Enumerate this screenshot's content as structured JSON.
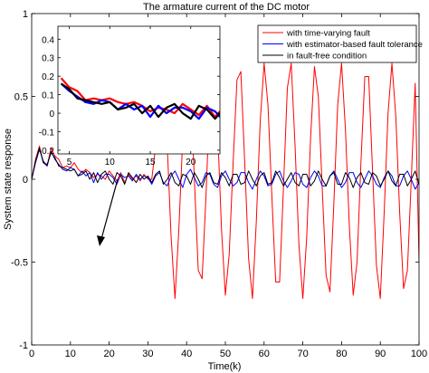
{
  "chart_data": [
    {
      "type": "line",
      "title": "The armature current of the DC motor",
      "xlabel": "Time(k)",
      "ylabel": "System state response",
      "xlim": [
        0,
        100
      ],
      "ylim": [
        -1,
        1
      ],
      "xticks": [
        0,
        10,
        20,
        30,
        40,
        50,
        60,
        70,
        80,
        90,
        100
      ],
      "yticks": [
        -1,
        -0.5,
        0,
        0.5,
        1
      ],
      "ytick_labels": [
        "-1",
        "-0.5",
        "0",
        "0.5",
        "1"
      ],
      "grid": false,
      "legend_position": "top-right",
      "series": [
        {
          "name": "with time-varying fault",
          "color": "#ff0000",
          "x": [
            0,
            1,
            2,
            3,
            4,
            5,
            6,
            7,
            8,
            9,
            10,
            11,
            12,
            13,
            14,
            15,
            16,
            17,
            18,
            19,
            20,
            21,
            22,
            23,
            24,
            25,
            26,
            27,
            28,
            29,
            30,
            31,
            32,
            33,
            34,
            35,
            36,
            37,
            38,
            39,
            40,
            41,
            42,
            43,
            44,
            45,
            46,
            47,
            48,
            49,
            50,
            51,
            52,
            53,
            54,
            55,
            56,
            57,
            58,
            59,
            60,
            61,
            62,
            63,
            64,
            65,
            66,
            67,
            68,
            69,
            70,
            71,
            72,
            73,
            74,
            75,
            76,
            77,
            78,
            79,
            80,
            81,
            82,
            83,
            84,
            85,
            86,
            87,
            88,
            89,
            90,
            91,
            92,
            93,
            94,
            95,
            96,
            97,
            98,
            99,
            100
          ],
          "y": [
            0,
            0.12,
            0.2,
            0.1,
            0.08,
            0.19,
            0.14,
            0.12,
            0.07,
            0.08,
            0.07,
            0.1,
            0.06,
            0.04,
            0.06,
            0.04,
            0.01,
            0.03,
            0.02,
            0.0,
            0.05,
            0.02,
            -0.01,
            0.04,
            -0.02,
            0.03,
            0.0,
            0.02,
            -0.01,
            0.03,
            0.0,
            0.0,
            0.2,
            0.55,
            0.7,
            0.2,
            -0.35,
            -0.72,
            -0.3,
            0.25,
            0.66,
            0.55,
            0.0,
            -0.55,
            -0.6,
            -0.1,
            0.5,
            0.68,
            0.3,
            -0.3,
            -0.7,
            -0.45,
            0.1,
            0.6,
            0.65,
            0.1,
            -0.48,
            -0.72,
            -0.25,
            0.35,
            0.7,
            0.45,
            -0.1,
            -0.62,
            -0.62,
            -0.05,
            0.55,
            0.7,
            0.2,
            -0.4,
            -0.72,
            -0.35,
            0.25,
            0.68,
            0.5,
            -0.05,
            -0.58,
            -0.68,
            -0.15,
            0.45,
            0.7,
            0.3,
            -0.28,
            -0.7,
            -0.5,
            0.1,
            0.62,
            0.62,
            0.05,
            -0.52,
            -0.72,
            -0.2,
            0.4,
            0.7,
            0.38,
            -0.2,
            -0.66,
            -0.55,
            0.0,
            0.58,
            -0.5
          ]
        },
        {
          "name": "with estimator-based fault tolerance",
          "color": "#0000ff",
          "x": [
            0,
            1,
            2,
            3,
            4,
            5,
            6,
            7,
            8,
            9,
            10,
            11,
            12,
            13,
            14,
            15,
            16,
            17,
            18,
            19,
            20,
            21,
            22,
            23,
            24,
            25,
            26,
            27,
            28,
            29,
            30,
            31,
            32,
            33,
            34,
            35,
            36,
            37,
            38,
            39,
            40,
            41,
            42,
            43,
            44,
            45,
            46,
            47,
            48,
            49,
            50,
            51,
            52,
            53,
            54,
            55,
            56,
            57,
            58,
            59,
            60,
            61,
            62,
            63,
            64,
            65,
            66,
            67,
            68,
            69,
            70,
            71,
            72,
            73,
            74,
            75,
            76,
            77,
            78,
            79,
            80,
            81,
            82,
            83,
            84,
            85,
            86,
            87,
            88,
            89,
            90,
            91,
            92,
            93,
            94,
            95,
            96,
            97,
            98,
            99,
            100
          ],
          "y": [
            0,
            0.1,
            0.18,
            0.11,
            0.08,
            0.17,
            0.12,
            0.09,
            0.06,
            0.05,
            0.07,
            0.06,
            0.02,
            0.05,
            0.02,
            0.04,
            -0.02,
            0.04,
            0.0,
            0.03,
            0.03,
            0.01,
            -0.03,
            0.03,
            0.01,
            0.02,
            -0.01,
            0.03,
            0.0,
            0.02,
            0.01,
            -0.03,
            0.02,
            0.04,
            -0.02,
            -0.04,
            0.02,
            0.05,
            0.0,
            -0.05,
            0.03,
            0.06,
            0.01,
            -0.04,
            -0.02,
            0.04,
            0.03,
            -0.03,
            -0.05,
            0.02,
            0.05,
            0.0,
            -0.04,
            -0.02,
            0.04,
            0.04,
            -0.02,
            -0.06,
            0.0,
            0.05,
            0.02,
            -0.04,
            -0.03,
            0.03,
            0.05,
            -0.01,
            -0.05,
            -0.01,
            0.04,
            0.03,
            -0.03,
            -0.05,
            0.01,
            0.05,
            0.02,
            -0.04,
            -0.04,
            0.02,
            0.05,
            0.0,
            -0.05,
            -0.02,
            0.04,
            0.04,
            -0.02,
            -0.05,
            0.0,
            0.05,
            0.02,
            -0.03,
            -0.05,
            0.01,
            0.05,
            0.02,
            -0.04,
            -0.04,
            0.02,
            0.05,
            0.0,
            -0.06,
            -0.02
          ]
        },
        {
          "name": "in fault-free condition",
          "color": "#000000",
          "x": [
            0,
            1,
            2,
            3,
            4,
            5,
            6,
            7,
            8,
            9,
            10,
            11,
            12,
            13,
            14,
            15,
            16,
            17,
            18,
            19,
            20,
            21,
            22,
            23,
            24,
            25,
            26,
            27,
            28,
            29,
            30,
            31,
            32,
            33,
            34,
            35,
            36,
            37,
            38,
            39,
            40,
            41,
            42,
            43,
            44,
            45,
            46,
            47,
            48,
            49,
            50,
            51,
            52,
            53,
            54,
            55,
            56,
            57,
            58,
            59,
            60,
            61,
            62,
            63,
            64,
            65,
            66,
            67,
            68,
            69,
            70,
            71,
            72,
            73,
            74,
            75,
            76,
            77,
            78,
            79,
            80,
            81,
            82,
            83,
            84,
            85,
            86,
            87,
            88,
            89,
            90,
            91,
            92,
            93,
            94,
            95,
            96,
            97,
            98,
            99,
            100
          ],
          "y": [
            0,
            0.11,
            0.19,
            0.1,
            0.09,
            0.16,
            0.13,
            0.08,
            0.07,
            0.06,
            0.05,
            0.06,
            0.02,
            0.03,
            0.05,
            0.0,
            0.04,
            -0.02,
            0.03,
            0.05,
            0.0,
            -0.03,
            0.04,
            0.02,
            -0.03,
            0.04,
            0.01,
            -0.02,
            0.03,
            0.0,
            0.02,
            -0.02,
            0.03,
            0.05,
            -0.03,
            0.0,
            0.04,
            -0.02,
            -0.04,
            0.03,
            0.02,
            -0.03,
            0.04,
            0.0,
            -0.05,
            0.02,
            0.04,
            -0.02,
            -0.03,
            0.04,
            0.01,
            -0.04,
            0.03,
            0.03,
            -0.03,
            -0.02,
            0.05,
            0.0,
            -0.04,
            0.02,
            0.04,
            -0.03,
            -0.02,
            0.05,
            0.01,
            -0.04,
            0.0,
            0.04,
            -0.02,
            -0.04,
            0.03,
            0.03,
            -0.04,
            -0.01,
            0.05,
            0.0,
            -0.04,
            0.02,
            0.04,
            -0.03,
            -0.03,
            0.04,
            0.01,
            -0.05,
            0.01,
            0.04,
            -0.02,
            -0.03,
            0.04,
            0.02,
            -0.04,
            0.0,
            0.05,
            -0.01,
            -0.04,
            0.03,
            0.03,
            -0.04,
            0.0,
            0.05,
            -0.03
          ]
        }
      ]
    },
    {
      "type": "line",
      "title": "",
      "xlim": [
        3.6,
        23.6
      ],
      "ylim": [
        -0.22,
        0.47
      ],
      "xticks": [
        5,
        10,
        15,
        20
      ],
      "yticks": [
        -0.2,
        -0.1,
        0,
        0.1,
        0.2,
        0.3,
        0.4
      ],
      "ytick_labels": [
        "-0.2",
        "-0.1",
        "0",
        "0.1",
        "0.2",
        "0.3",
        "0.4"
      ],
      "grid": false,
      "series": [
        {
          "name": "with time-varying fault",
          "color": "#ff0000",
          "x": [
            4,
            5,
            6,
            7,
            8,
            9,
            10,
            11,
            12,
            13,
            14,
            15,
            16,
            17,
            18,
            19,
            20,
            21,
            22,
            23,
            23.6
          ],
          "y": [
            0.19,
            0.14,
            0.12,
            0.07,
            0.08,
            0.07,
            0.08,
            0.06,
            0.05,
            0.06,
            0.04,
            0.01,
            0.03,
            0.02,
            0.0,
            0.05,
            0.02,
            -0.01,
            0.04,
            -0.02,
            0.01
          ]
        },
        {
          "name": "with estimator-based fault tolerance",
          "color": "#0000ff",
          "x": [
            4,
            5,
            6,
            7,
            8,
            9,
            10,
            11,
            12,
            13,
            14,
            15,
            16,
            17,
            18,
            19,
            20,
            21,
            22,
            23,
            23.6
          ],
          "y": [
            0.16,
            0.12,
            0.09,
            0.06,
            0.05,
            0.07,
            0.06,
            0.02,
            0.05,
            0.02,
            0.04,
            -0.02,
            0.04,
            0.0,
            0.03,
            0.03,
            0.01,
            -0.03,
            0.03,
            0.01,
            -0.02
          ]
        },
        {
          "name": "in fault-free condition",
          "color": "#000000",
          "x": [
            4,
            5,
            6,
            7,
            8,
            9,
            10,
            11,
            12,
            13,
            14,
            15,
            16,
            17,
            18,
            19,
            20,
            21,
            22,
            23,
            23.6
          ],
          "y": [
            0.16,
            0.13,
            0.08,
            0.07,
            0.06,
            0.05,
            0.06,
            0.02,
            0.03,
            0.05,
            0.0,
            0.04,
            -0.02,
            0.03,
            0.05,
            0.0,
            -0.03,
            0.04,
            0.02,
            -0.03,
            0.0
          ]
        }
      ]
    }
  ]
}
